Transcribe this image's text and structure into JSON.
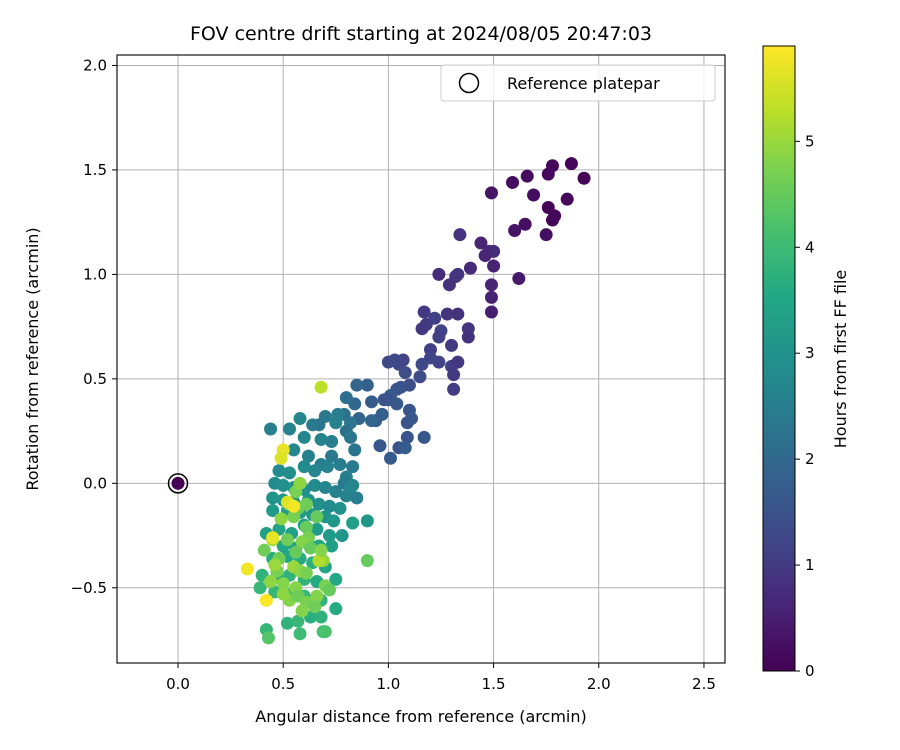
{
  "chart_data": {
    "type": "scatter",
    "title": "FOV centre drift starting at 2024/08/05 20:47:03",
    "xlabel": "Angular distance from reference (arcmin)",
    "ylabel": "Rotation from reference (arcmin)",
    "colorbar_label": "Hours from first FF file",
    "xlim": [
      -0.29,
      2.6
    ],
    "ylim": [
      -0.86,
      2.05
    ],
    "clim": [
      0,
      5.9
    ],
    "xticks": [
      0.0,
      0.5,
      1.0,
      1.5,
      2.0,
      2.5
    ],
    "xtick_labels": [
      "0.0",
      "0.5",
      "1.0",
      "1.5",
      "2.0",
      "2.5"
    ],
    "yticks": [
      -0.5,
      0.0,
      0.5,
      1.0,
      1.5,
      2.0
    ],
    "ytick_labels": [
      "−0.5",
      "0.0",
      "0.5",
      "1.0",
      "1.5",
      "2.0"
    ],
    "cticks": [
      0,
      1,
      2,
      3,
      4,
      5
    ],
    "ctick_labels": [
      "0",
      "1",
      "2",
      "3",
      "4",
      "5"
    ],
    "colormap": "viridis",
    "grid": true,
    "legend": {
      "placement": "top-right",
      "entries": [
        "Reference platepar"
      ]
    },
    "reference_point": {
      "name": "Reference platepar",
      "x": 0.0,
      "y": 0.0,
      "t": 0.0
    },
    "series": [
      {
        "points": [
          [
            1.87,
            1.53,
            0.05
          ],
          [
            1.78,
            1.52,
            0.1
          ],
          [
            1.93,
            1.46,
            0.08
          ],
          [
            1.76,
            1.48,
            0.15
          ],
          [
            1.66,
            1.47,
            0.18
          ],
          [
            1.59,
            1.44,
            0.2
          ],
          [
            1.69,
            1.38,
            0.22
          ],
          [
            1.85,
            1.36,
            0.12
          ],
          [
            1.76,
            1.32,
            0.08
          ],
          [
            1.78,
            1.26,
            0.05
          ],
          [
            1.49,
            1.39,
            0.3
          ],
          [
            1.65,
            1.24,
            0.25
          ],
          [
            1.6,
            1.21,
            0.3
          ],
          [
            1.75,
            1.19,
            0.25
          ],
          [
            1.79,
            1.28,
            0.1
          ],
          [
            1.44,
            1.15,
            0.6
          ],
          [
            1.48,
            1.11,
            0.7
          ],
          [
            1.5,
            1.11,
            0.75
          ],
          [
            1.46,
            1.09,
            0.6
          ],
          [
            1.5,
            1.04,
            0.55
          ],
          [
            1.34,
            1.19,
            0.85
          ],
          [
            1.62,
            0.98,
            0.4
          ],
          [
            1.39,
            1.03,
            0.7
          ],
          [
            1.32,
            0.99,
            0.8
          ],
          [
            1.33,
            1.0,
            0.9
          ],
          [
            1.29,
            0.95,
            0.85
          ],
          [
            1.24,
            1.0,
            0.75
          ],
          [
            1.49,
            0.95,
            0.6
          ],
          [
            1.49,
            0.89,
            0.55
          ],
          [
            1.49,
            0.82,
            0.5
          ],
          [
            1.17,
            0.82,
            1.0
          ],
          [
            1.18,
            0.76,
            1.0
          ],
          [
            1.16,
            0.74,
            0.95
          ],
          [
            1.22,
            0.79,
            1.1
          ],
          [
            1.28,
            0.81,
            0.9
          ],
          [
            1.33,
            0.81,
            0.85
          ],
          [
            1.38,
            0.74,
            0.9
          ],
          [
            1.38,
            0.7,
            0.85
          ],
          [
            1.25,
            0.73,
            1.2
          ],
          [
            1.24,
            0.7,
            1.1
          ],
          [
            1.3,
            0.66,
            1.0
          ],
          [
            1.2,
            0.64,
            1.1
          ],
          [
            1.24,
            0.58,
            1.2
          ],
          [
            1.3,
            0.56,
            1.1
          ],
          [
            1.33,
            0.58,
            0.95
          ],
          [
            1.31,
            0.52,
            1.0
          ],
          [
            1.31,
            0.45,
            1.05
          ],
          [
            1.2,
            0.6,
            1.2
          ],
          [
            1.16,
            0.57,
            1.3
          ],
          [
            1.07,
            0.59,
            1.2
          ],
          [
            1.03,
            0.59,
            1.3
          ],
          [
            1.05,
            0.57,
            1.25
          ],
          [
            1.0,
            0.58,
            1.3
          ],
          [
            1.08,
            0.53,
            1.4
          ],
          [
            1.15,
            0.51,
            1.35
          ],
          [
            1.1,
            0.47,
            1.4
          ],
          [
            1.06,
            0.46,
            1.5
          ],
          [
            1.04,
            0.45,
            1.5
          ],
          [
            1.01,
            0.42,
            1.6
          ],
          [
            0.98,
            0.4,
            1.55
          ],
          [
            1.0,
            0.4,
            1.5
          ],
          [
            1.04,
            0.38,
            1.6
          ],
          [
            0.92,
            0.39,
            1.7
          ],
          [
            0.9,
            0.47,
            1.8
          ],
          [
            0.85,
            0.47,
            1.9
          ],
          [
            1.1,
            0.35,
            1.5
          ],
          [
            1.11,
            0.31,
            1.6
          ],
          [
            1.09,
            0.29,
            1.55
          ],
          [
            0.97,
            0.33,
            1.8
          ],
          [
            0.94,
            0.3,
            1.75
          ],
          [
            1.17,
            0.22,
            1.6
          ],
          [
            1.09,
            0.22,
            1.5
          ],
          [
            1.05,
            0.17,
            1.5
          ],
          [
            1.08,
            0.17,
            1.7
          ],
          [
            1.01,
            0.12,
            1.7
          ],
          [
            0.96,
            0.18,
            1.6
          ],
          [
            0.92,
            0.3,
            1.9
          ],
          [
            0.86,
            0.31,
            1.9
          ],
          [
            0.84,
            0.38,
            2.0
          ],
          [
            0.8,
            0.41,
            2.1
          ],
          [
            0.79,
            0.33,
            2.2
          ],
          [
            0.82,
            0.29,
            2.3
          ],
          [
            0.76,
            0.33,
            2.5
          ],
          [
            0.7,
            0.32,
            2.4
          ],
          [
            0.75,
            0.29,
            2.6
          ],
          [
            0.67,
            0.28,
            2.3
          ],
          [
            0.64,
            0.28,
            2.4
          ],
          [
            0.58,
            0.31,
            2.7
          ],
          [
            0.44,
            0.26,
            2.5
          ],
          [
            0.53,
            0.26,
            2.6
          ],
          [
            0.6,
            0.22,
            2.7
          ],
          [
            0.68,
            0.21,
            2.6
          ],
          [
            0.73,
            0.2,
            2.5
          ],
          [
            0.8,
            0.25,
            2.2
          ],
          [
            0.82,
            0.22,
            2.3
          ],
          [
            0.84,
            0.16,
            2.3
          ],
          [
            0.73,
            0.13,
            2.4
          ],
          [
            0.68,
            0.09,
            2.5
          ],
          [
            0.62,
            0.13,
            2.6
          ],
          [
            0.55,
            0.16,
            2.7
          ],
          [
            0.48,
            0.06,
            2.8
          ],
          [
            0.53,
            0.05,
            2.9
          ],
          [
            0.6,
            0.08,
            2.8
          ],
          [
            0.65,
            0.06,
            2.7
          ],
          [
            0.71,
            0.08,
            2.6
          ],
          [
            0.77,
            0.09,
            2.5
          ],
          [
            0.83,
            0.08,
            2.4
          ],
          [
            0.8,
            0.03,
            2.5
          ],
          [
            0.79,
            0.0,
            2.4
          ],
          [
            0.83,
            -0.01,
            2.6
          ],
          [
            0.46,
            0.0,
            2.8
          ],
          [
            0.5,
            -0.01,
            2.9
          ],
          [
            0.55,
            -0.02,
            3.0
          ],
          [
            0.6,
            -0.03,
            2.9
          ],
          [
            0.65,
            -0.01,
            2.8
          ],
          [
            0.7,
            -0.02,
            2.7
          ],
          [
            0.75,
            -0.04,
            2.6
          ],
          [
            0.8,
            -0.06,
            2.6
          ],
          [
            0.85,
            -0.07,
            2.5
          ],
          [
            0.82,
            -0.02,
            2.7
          ],
          [
            0.45,
            -0.07,
            3.0
          ],
          [
            0.5,
            -0.08,
            3.1
          ],
          [
            0.55,
            -0.09,
            3.2
          ],
          [
            0.62,
            -0.08,
            3.0
          ],
          [
            0.67,
            -0.1,
            2.9
          ],
          [
            0.72,
            -0.11,
            2.8
          ],
          [
            0.77,
            -0.12,
            2.9
          ],
          [
            0.45,
            -0.13,
            3.2
          ],
          [
            0.52,
            -0.13,
            3.3
          ],
          [
            0.58,
            -0.14,
            3.2
          ],
          [
            0.64,
            -0.15,
            3.1
          ],
          [
            0.7,
            -0.16,
            3.0
          ],
          [
            0.74,
            -0.18,
            3.1
          ],
          [
            0.83,
            -0.19,
            3.3
          ],
          [
            0.9,
            -0.18,
            3.1
          ],
          [
            0.42,
            -0.24,
            3.3
          ],
          [
            0.48,
            -0.22,
            3.4
          ],
          [
            0.54,
            -0.24,
            3.3
          ],
          [
            0.6,
            -0.2,
            3.3
          ],
          [
            0.66,
            -0.22,
            3.2
          ],
          [
            0.72,
            -0.25,
            3.2
          ],
          [
            0.78,
            -0.25,
            3.1
          ],
          [
            0.5,
            -0.3,
            3.5
          ],
          [
            0.56,
            -0.31,
            3.4
          ],
          [
            0.62,
            -0.29,
            3.4
          ],
          [
            0.67,
            -0.3,
            3.5
          ],
          [
            0.73,
            -0.3,
            3.3
          ],
          [
            0.45,
            -0.36,
            3.6
          ],
          [
            0.52,
            -0.35,
            3.5
          ],
          [
            0.58,
            -0.36,
            3.6
          ],
          [
            0.64,
            -0.38,
            3.7
          ],
          [
            0.7,
            -0.4,
            3.4
          ],
          [
            0.4,
            -0.44,
            3.8
          ],
          [
            0.47,
            -0.45,
            3.7
          ],
          [
            0.53,
            -0.44,
            3.8
          ],
          [
            0.6,
            -0.46,
            3.8
          ],
          [
            0.66,
            -0.47,
            3.6
          ],
          [
            0.75,
            -0.46,
            3.5
          ],
          [
            0.39,
            -0.5,
            3.9
          ],
          [
            0.46,
            -0.52,
            3.9
          ],
          [
            0.54,
            -0.53,
            4.0
          ],
          [
            0.6,
            -0.54,
            3.9
          ],
          [
            0.68,
            -0.56,
            3.8
          ],
          [
            0.75,
            -0.6,
            3.6
          ],
          [
            0.52,
            -0.67,
            3.8
          ],
          [
            0.57,
            -0.66,
            3.9
          ],
          [
            0.63,
            -0.64,
            3.7
          ],
          [
            0.68,
            -0.64,
            3.8
          ],
          [
            0.42,
            -0.7,
            3.9
          ],
          [
            0.58,
            -0.72,
            4.0
          ],
          [
            0.69,
            -0.71,
            4.1
          ],
          [
            0.43,
            -0.74,
            4.3
          ],
          [
            0.7,
            -0.71,
            4.2
          ],
          [
            0.61,
            -0.1,
            4.6
          ],
          [
            0.66,
            -0.16,
            4.5
          ],
          [
            0.57,
            -0.12,
            4.6
          ],
          [
            0.55,
            -0.16,
            4.7
          ],
          [
            0.49,
            -0.17,
            4.9
          ],
          [
            0.56,
            -0.04,
            4.7
          ],
          [
            0.58,
            0.0,
            4.9
          ],
          [
            0.53,
            -0.1,
            5.0
          ],
          [
            0.61,
            -0.21,
            4.5
          ],
          [
            0.62,
            -0.26,
            4.7
          ],
          [
            0.59,
            -0.28,
            4.8
          ],
          [
            0.45,
            -0.27,
            5.1
          ],
          [
            0.41,
            -0.32,
            4.6
          ],
          [
            0.48,
            -0.36,
            4.6
          ],
          [
            0.56,
            -0.33,
            4.5
          ],
          [
            0.63,
            -0.31,
            4.5
          ],
          [
            0.69,
            -0.37,
            4.9
          ],
          [
            0.67,
            -0.37,
            5.2
          ],
          [
            0.55,
            -0.4,
            5.0
          ],
          [
            0.58,
            -0.42,
            4.9
          ],
          [
            0.61,
            -0.43,
            4.7
          ],
          [
            0.5,
            -0.48,
            4.8
          ],
          [
            0.56,
            -0.5,
            4.8
          ],
          [
            0.53,
            -0.56,
            4.8
          ],
          [
            0.57,
            -0.54,
            4.6
          ],
          [
            0.61,
            -0.57,
            4.7
          ],
          [
            0.66,
            -0.54,
            4.8
          ],
          [
            0.7,
            -0.49,
            4.7
          ],
          [
            0.72,
            -0.51,
            4.5
          ],
          [
            0.65,
            -0.59,
            4.6
          ],
          [
            0.59,
            -0.61,
            4.8
          ],
          [
            0.47,
            -0.42,
            4.7
          ],
          [
            0.44,
            -0.47,
            4.9
          ],
          [
            0.5,
            -0.53,
            4.9
          ],
          [
            0.52,
            -0.27,
            4.6
          ],
          [
            0.9,
            -0.37,
            4.5
          ],
          [
            0.46,
            -0.39,
            5.0
          ],
          [
            0.68,
            -0.32,
            4.8
          ],
          [
            0.52,
            -0.09,
            5.6
          ],
          [
            0.55,
            -0.11,
            5.8
          ],
          [
            0.5,
            0.16,
            5.7
          ],
          [
            0.49,
            0.12,
            5.6
          ],
          [
            0.68,
            0.46,
            5.3
          ],
          [
            0.33,
            -0.41,
            5.8
          ],
          [
            0.42,
            -0.56,
            5.9
          ],
          [
            0.45,
            -0.26,
            5.7
          ]
        ]
      }
    ]
  }
}
